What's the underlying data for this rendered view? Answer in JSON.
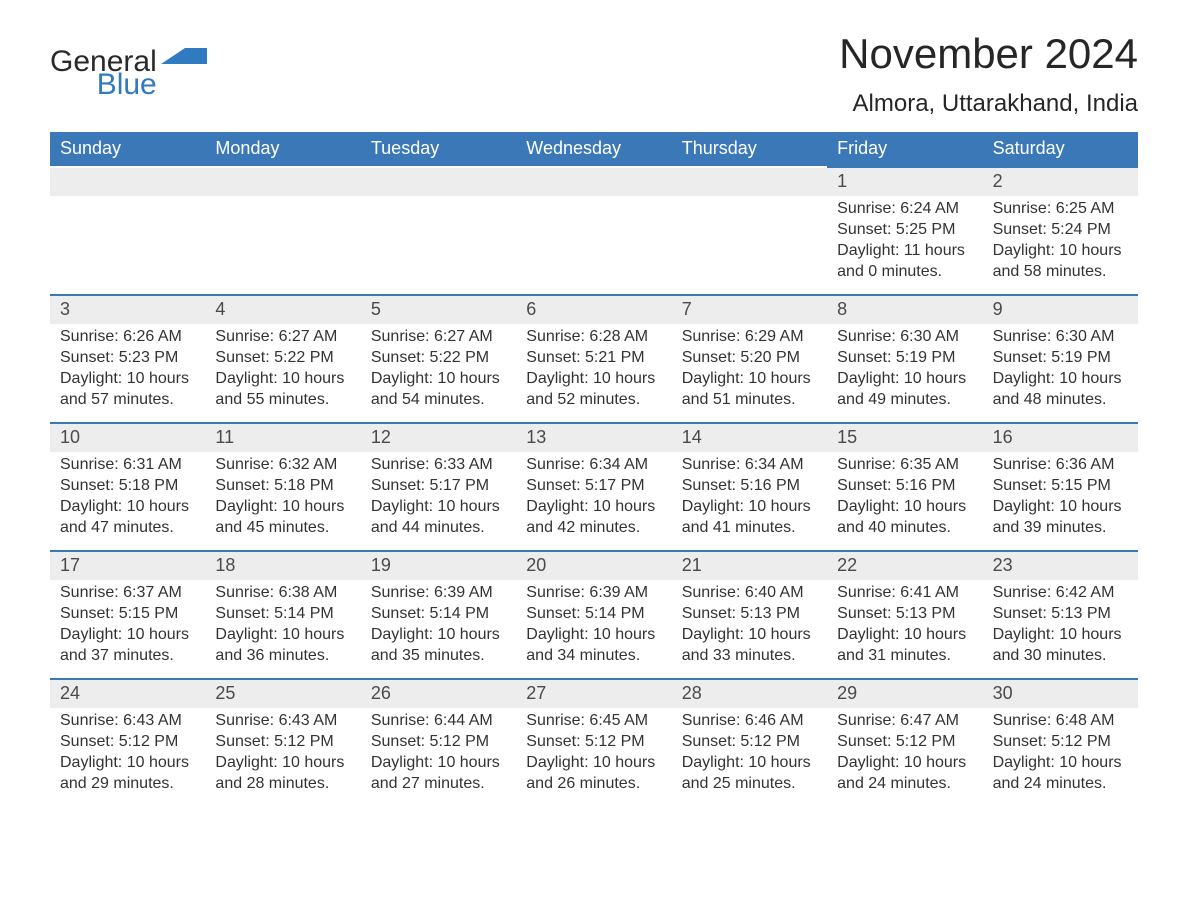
{
  "colors": {
    "header_bg": "#3a78b8",
    "day_divider": "#3a78b8",
    "day_num_bg": "#ededed",
    "logo_blue": "#2f7ac0",
    "text_dark": "#262626",
    "body_text": "#333333",
    "background": "#ffffff"
  },
  "logo": {
    "line1": "General",
    "line2": "Blue"
  },
  "title": "November 2024",
  "location": "Almora, Uttarakhand, India",
  "weekdays": [
    "Sunday",
    "Monday",
    "Tuesday",
    "Wednesday",
    "Thursday",
    "Friday",
    "Saturday"
  ],
  "labels": {
    "sunrise": "Sunrise",
    "sunset": "Sunset",
    "daylight": "Daylight"
  },
  "weeks": [
    [
      null,
      null,
      null,
      null,
      null,
      {
        "day": 1,
        "sunrise": "6:24 AM",
        "sunset": "5:25 PM",
        "daylight": "11 hours and 0 minutes."
      },
      {
        "day": 2,
        "sunrise": "6:25 AM",
        "sunset": "5:24 PM",
        "daylight": "10 hours and 58 minutes."
      }
    ],
    [
      {
        "day": 3,
        "sunrise": "6:26 AM",
        "sunset": "5:23 PM",
        "daylight": "10 hours and 57 minutes."
      },
      {
        "day": 4,
        "sunrise": "6:27 AM",
        "sunset": "5:22 PM",
        "daylight": "10 hours and 55 minutes."
      },
      {
        "day": 5,
        "sunrise": "6:27 AM",
        "sunset": "5:22 PM",
        "daylight": "10 hours and 54 minutes."
      },
      {
        "day": 6,
        "sunrise": "6:28 AM",
        "sunset": "5:21 PM",
        "daylight": "10 hours and 52 minutes."
      },
      {
        "day": 7,
        "sunrise": "6:29 AM",
        "sunset": "5:20 PM",
        "daylight": "10 hours and 51 minutes."
      },
      {
        "day": 8,
        "sunrise": "6:30 AM",
        "sunset": "5:19 PM",
        "daylight": "10 hours and 49 minutes."
      },
      {
        "day": 9,
        "sunrise": "6:30 AM",
        "sunset": "5:19 PM",
        "daylight": "10 hours and 48 minutes."
      }
    ],
    [
      {
        "day": 10,
        "sunrise": "6:31 AM",
        "sunset": "5:18 PM",
        "daylight": "10 hours and 47 minutes."
      },
      {
        "day": 11,
        "sunrise": "6:32 AM",
        "sunset": "5:18 PM",
        "daylight": "10 hours and 45 minutes."
      },
      {
        "day": 12,
        "sunrise": "6:33 AM",
        "sunset": "5:17 PM",
        "daylight": "10 hours and 44 minutes."
      },
      {
        "day": 13,
        "sunrise": "6:34 AM",
        "sunset": "5:17 PM",
        "daylight": "10 hours and 42 minutes."
      },
      {
        "day": 14,
        "sunrise": "6:34 AM",
        "sunset": "5:16 PM",
        "daylight": "10 hours and 41 minutes."
      },
      {
        "day": 15,
        "sunrise": "6:35 AM",
        "sunset": "5:16 PM",
        "daylight": "10 hours and 40 minutes."
      },
      {
        "day": 16,
        "sunrise": "6:36 AM",
        "sunset": "5:15 PM",
        "daylight": "10 hours and 39 minutes."
      }
    ],
    [
      {
        "day": 17,
        "sunrise": "6:37 AM",
        "sunset": "5:15 PM",
        "daylight": "10 hours and 37 minutes."
      },
      {
        "day": 18,
        "sunrise": "6:38 AM",
        "sunset": "5:14 PM",
        "daylight": "10 hours and 36 minutes."
      },
      {
        "day": 19,
        "sunrise": "6:39 AM",
        "sunset": "5:14 PM",
        "daylight": "10 hours and 35 minutes."
      },
      {
        "day": 20,
        "sunrise": "6:39 AM",
        "sunset": "5:14 PM",
        "daylight": "10 hours and 34 minutes."
      },
      {
        "day": 21,
        "sunrise": "6:40 AM",
        "sunset": "5:13 PM",
        "daylight": "10 hours and 33 minutes."
      },
      {
        "day": 22,
        "sunrise": "6:41 AM",
        "sunset": "5:13 PM",
        "daylight": "10 hours and 31 minutes."
      },
      {
        "day": 23,
        "sunrise": "6:42 AM",
        "sunset": "5:13 PM",
        "daylight": "10 hours and 30 minutes."
      }
    ],
    [
      {
        "day": 24,
        "sunrise": "6:43 AM",
        "sunset": "5:12 PM",
        "daylight": "10 hours and 29 minutes."
      },
      {
        "day": 25,
        "sunrise": "6:43 AM",
        "sunset": "5:12 PM",
        "daylight": "10 hours and 28 minutes."
      },
      {
        "day": 26,
        "sunrise": "6:44 AM",
        "sunset": "5:12 PM",
        "daylight": "10 hours and 27 minutes."
      },
      {
        "day": 27,
        "sunrise": "6:45 AM",
        "sunset": "5:12 PM",
        "daylight": "10 hours and 26 minutes."
      },
      {
        "day": 28,
        "sunrise": "6:46 AM",
        "sunset": "5:12 PM",
        "daylight": "10 hours and 25 minutes."
      },
      {
        "day": 29,
        "sunrise": "6:47 AM",
        "sunset": "5:12 PM",
        "daylight": "10 hours and 24 minutes."
      },
      {
        "day": 30,
        "sunrise": "6:48 AM",
        "sunset": "5:12 PM",
        "daylight": "10 hours and 24 minutes."
      }
    ]
  ]
}
